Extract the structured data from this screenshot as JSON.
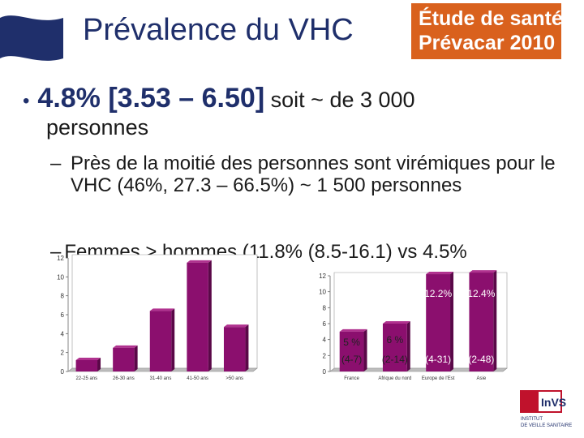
{
  "title": "Prévalence du VHC",
  "badge": {
    "line1": "Étude de santé",
    "line2": "Prévacar 2010"
  },
  "bullet1": {
    "bullet": "•",
    "main": "4.8% [3.53 – 6.50]",
    "rest": " soit ~ de 3 000",
    "cont": "personnes"
  },
  "subbullet1": {
    "dash": "–",
    "text": "Près de la moitié des personnes sont virémiques pour le VHC  (46%, 27.3 – 66.5%) ~ 1 500 personnes"
  },
  "subbullet2": {
    "dash": "–",
    "text": "Femmes > hommes (11.8% (8.5-16.1) vs 4.5%"
  },
  "colors": {
    "bar": "#8b0f6e",
    "bar_dark": "#5a0848",
    "title": "#1f2f6b",
    "badge": "#d9611d"
  },
  "chart_data": [
    {
      "type": "bar",
      "categories": [
        "22-25 ans",
        "26-30 ans",
        "31-40 ans",
        "41-50 ans",
        ">50 ans"
      ],
      "values": [
        1.2,
        2.5,
        6.4,
        11.5,
        4.7
      ],
      "ylim": [
        0,
        12
      ],
      "yticks": [
        "0",
        "2",
        "4",
        "6",
        "8",
        "10",
        "12"
      ],
      "grid": false
    },
    {
      "type": "bar",
      "categories": [
        "France",
        "Afrique du nord",
        "Europe de l'Est",
        "Asie"
      ],
      "values": [
        5,
        6,
        12.2,
        12.4
      ],
      "data_labels": [
        "5 %",
        "6 %",
        "12.2%",
        "12.4%"
      ],
      "ci_labels": [
        "(4-7)",
        "(2-14)",
        "(4-31)",
        "(2-48)"
      ],
      "ylim": [
        0,
        12
      ],
      "yticks": [
        "0",
        "2",
        "4",
        "6",
        "8",
        "10",
        "12"
      ],
      "grid": false
    }
  ],
  "logo": {
    "text": "InVS",
    "line1": "INSTITUT",
    "line2": "DE VEILLE SANITAIRE"
  }
}
